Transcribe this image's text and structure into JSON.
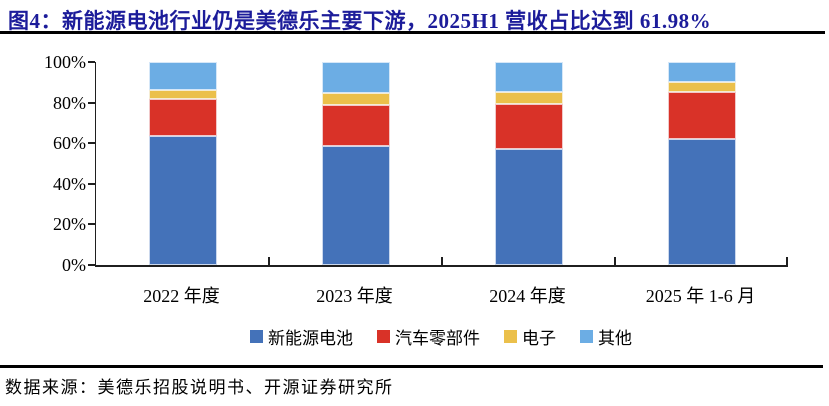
{
  "figure": {
    "title": "图4：新能源电池行业仍是美德乐主要下游，2025H1 营收占比达到 61.98%",
    "title_color": "#1C1C9A",
    "source_note": "数据来源：美德乐招股说明书、开源证券研究所"
  },
  "chart_data": {
    "type": "bar",
    "stacked": true,
    "title": "",
    "xlabel": "",
    "ylabel": "",
    "ylim": [
      0,
      100
    ],
    "grid": false,
    "legend_position": "bottom",
    "yticks": [
      "0%",
      "20%",
      "40%",
      "60%",
      "80%",
      "100%"
    ],
    "categories": [
      "2022 年度",
      "2023 年度",
      "2024 年度",
      "2025 年 1-6 月"
    ],
    "series": [
      {
        "name": "新能源电池",
        "color": "#4472B9",
        "values": [
          63.6,
          58.6,
          57.0,
          61.98
        ]
      },
      {
        "name": "汽车零部件",
        "color": "#D93228",
        "values": [
          18.4,
          20.4,
          22.5,
          23.22
        ]
      },
      {
        "name": "电子",
        "color": "#EBC04B",
        "values": [
          4.1,
          5.5,
          5.5,
          5.0
        ]
      },
      {
        "name": "其他",
        "color": "#6CADE4",
        "values": [
          13.9,
          15.5,
          15.0,
          9.8
        ]
      }
    ]
  }
}
